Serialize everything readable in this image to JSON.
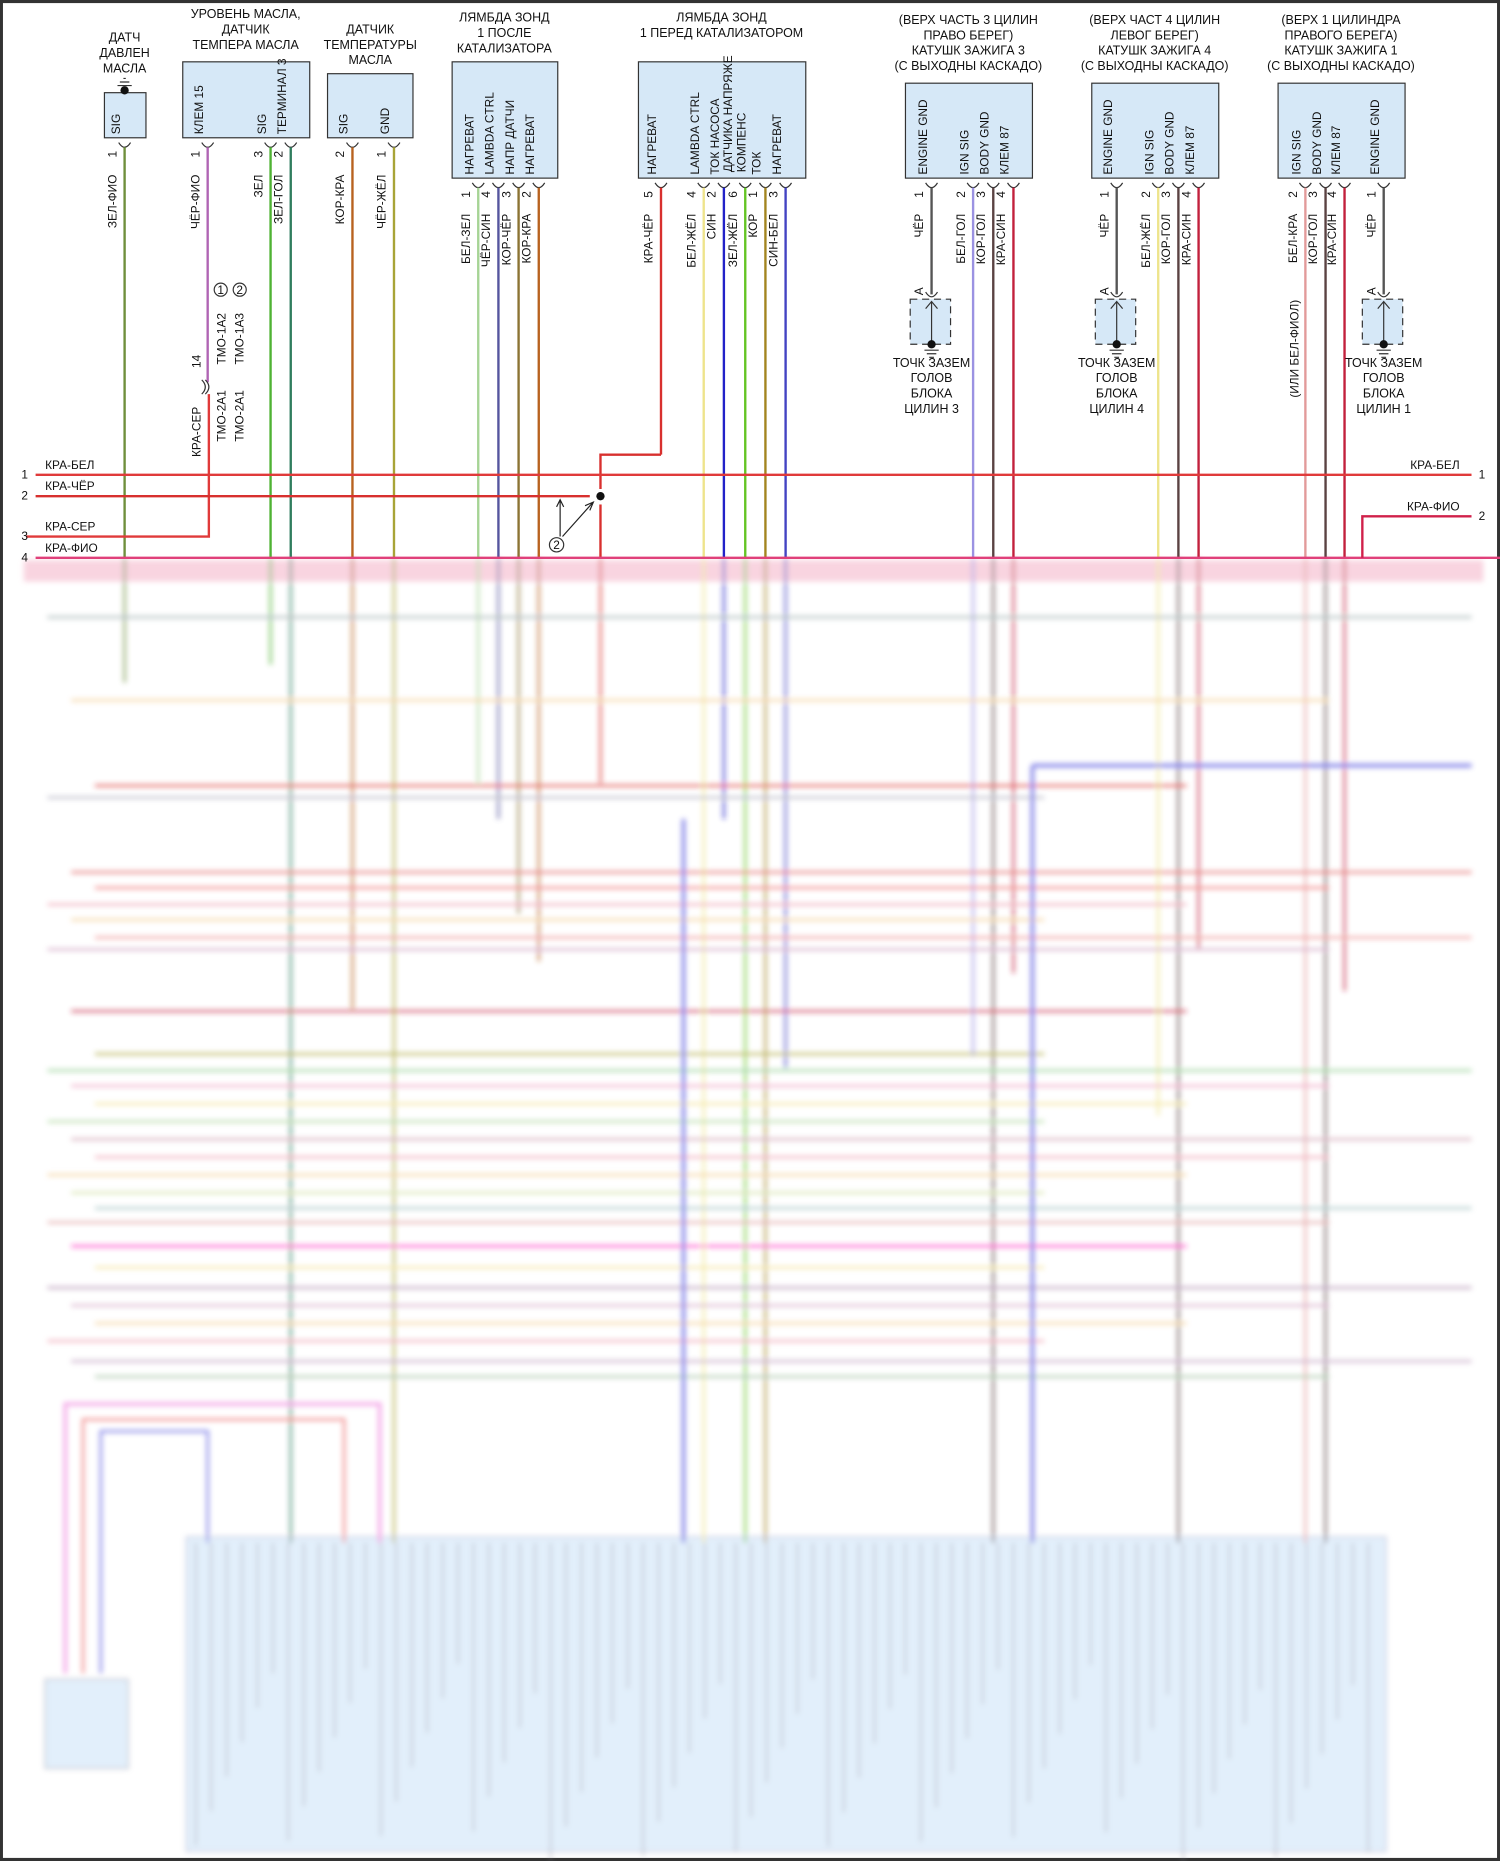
{
  "components": [
    {
      "title": [
        "ДАТЧ",
        "ДАВЛЕН",
        "МАСЛА"
      ],
      "pins": [
        {
          "label": "SIG",
          "num": "1",
          "wire": "ЗЕЛ-ФИО",
          "color": "#6f8f3c"
        }
      ]
    },
    {
      "title": [
        "УРОВЕНЬ МАСЛА,",
        "ДАТЧИК",
        "ТЕМПЕРА МАСЛА"
      ],
      "pins": [
        {
          "label": "КЛЕМ 15",
          "num": "1",
          "wire": "ЧЁР-ФИО",
          "color": "#b064b4"
        },
        {
          "label": "SIG",
          "num": "3",
          "wire": "ЗЕЛ",
          "color": "#4fb233"
        },
        {
          "label": "ТЕРМИНАЛ 3",
          "num": "2",
          "wire": "ЗЕЛ-ГОЛ",
          "color": "#2f7d5e"
        }
      ]
    },
    {
      "title": [
        "ДАТЧИК",
        "ТЕМПЕРАТУРЫ",
        "МАСЛА"
      ],
      "pins": [
        {
          "label": "SIG",
          "num": "2",
          "wire": "КОР-КРА",
          "color": "#b8621f"
        },
        {
          "label": "GND",
          "num": "1",
          "wire": "ЧЁР-ЖЁЛ",
          "color": "#a8a437"
        }
      ]
    },
    {
      "title": [
        "ЛЯМБДА ЗОНД",
        "1 ПОСЛЕ",
        "КАТАЛИЗАТОРА"
      ],
      "pins": [
        {
          "label": "НАГРЕВАТ",
          "num": "1",
          "wire": "БЕЛ-ЗЕЛ",
          "color": "#a6d495"
        },
        {
          "label": "LAMBDA CTRL",
          "num": "4",
          "wire": "ЧЁР-СИН",
          "color": "#55559e"
        },
        {
          "label": "НАПР ДАТЧИ",
          "num": "3",
          "wire": "КОР-ЧЁР",
          "color": "#8b7333"
        },
        {
          "label": "НАГРЕВАТ",
          "num": "2",
          "wire": "КОР-КРА",
          "color": "#b8621f"
        }
      ]
    },
    {
      "title": [
        "ЛЯМБДА ЗОНД",
        "1 ПЕРЕД КАТАЛИЗАТОРОМ"
      ],
      "pins": [
        {
          "label": "НАГРЕВАТ",
          "num": "5",
          "wire": "КРА-ЧЁР",
          "color": "#d8302e"
        },
        {
          "label": "LAMBDA CTRL",
          "num": "4",
          "wire": "БЕЛ-ЖЁЛ",
          "color": "#eee48c"
        },
        {
          "label": "ТОК НАСОСА",
          "num": "2",
          "wire": "СИН",
          "color": "#2222c8"
        },
        {
          "label": "ДАТЧИКА НАПРЯЖЕ КОМПЕНС",
          "num": "6",
          "wire": "ЗЕЛ-ЖЁЛ",
          "color": "#64c423"
        },
        {
          "label": "ТОК",
          "num": "1",
          "wire": "КОР",
          "color": "#a3841f"
        },
        {
          "label": "НАГРЕВАТ",
          "num": "3",
          "wire": "СИН-БЕЛ",
          "color": "#4343c2"
        }
      ]
    },
    {
      "title": [
        "(ВЕРХ ЧАСТЬ 3 ЦИЛИН",
        "ПРАВО БЕРЕГ)",
        "КАТУШК ЗАЖИГА 3",
        "(С ВЫХОДНЫ КАСКАДО)"
      ],
      "pins": [
        {
          "label": "ENGINE GND",
          "num": "1",
          "wire": "ЧЁР",
          "color": "#555555"
        },
        {
          "label": "IGN SIG",
          "num": "2",
          "wire": "БЕЛ-ГОЛ",
          "color": "#9b92e2"
        },
        {
          "label": "BODY GND",
          "num": "3",
          "wire": "КОР-ГОЛ",
          "color": "#5a4242"
        },
        {
          "label": "КЛЕМ 87",
          "num": "4",
          "wire": "КРА-СИН",
          "color": "#c2203c"
        }
      ],
      "ground": {
        "pin": "A",
        "label": [
          "ТОЧК ЗАЗЕМ",
          "ГОЛОВ",
          "БЛОКА",
          "ЦИЛИН 3"
        ]
      }
    },
    {
      "title": [
        "(ВЕРХ ЧАСТ 4 ЦИЛИН",
        "ЛЕВОГ БЕРЕГ)",
        "КАТУШК ЗАЖИГА 4",
        "(С ВЫХОДНЫ КАСКАДО)"
      ],
      "pins": [
        {
          "label": "ENGINE GND",
          "num": "1",
          "wire": "ЧЁР",
          "color": "#555555"
        },
        {
          "label": "IGN SIG",
          "num": "2",
          "wire": "БЕЛ-ЖЁЛ",
          "color": "#eee48c"
        },
        {
          "label": "BODY GND",
          "num": "3",
          "wire": "КОР-ГОЛ",
          "color": "#5a4242"
        },
        {
          "label": "КЛЕМ 87",
          "num": "4",
          "wire": "КРА-СИН",
          "color": "#c2203c"
        }
      ],
      "ground": {
        "pin": "A",
        "label": [
          "ТОЧК ЗАЗЕМ",
          "ГОЛОВ",
          "БЛОКА",
          "ЦИЛИН 4"
        ]
      }
    },
    {
      "title": [
        "(ВЕРХ 1 ЦИЛИНДРА",
        "ПРАВОГО БЕРЕГА)",
        "КАТУШК ЗАЖИГА 1",
        "(С ВЫХОДНЫ КАСКАДО)"
      ],
      "pins": [
        {
          "label": "IGN SIG",
          "num": "2",
          "wire": "БЕЛ-КРА",
          "color": "#e29a9a"
        },
        {
          "label": "BODY GND",
          "num": "3",
          "wire": "КОР-ГОЛ",
          "color": "#5a4242"
        },
        {
          "label": "КЛЕМ 87",
          "num": "4",
          "wire": "КРА-СИН",
          "color": "#c2203c"
        },
        {
          "label": "ENGINE GND",
          "num": "1",
          "wire": "ЧЁР",
          "color": "#555555"
        }
      ],
      "ground": {
        "pin": "A",
        "label": [
          "ТОЧК ЗАЗЕМ",
          "ГОЛОВ",
          "БЛОКА",
          "ЦИЛИН 1"
        ]
      },
      "alt_wire_note": "(ИЛИ БЕЛ-ФИОЛ)"
    }
  ],
  "inline_connector": {
    "pin": "14",
    "lower_wire": "КРА-СЕР",
    "refs": [
      "ТМО-1А2",
      "ТМО-1А3",
      "ТМО-2А1",
      "ТМО-2А1"
    ],
    "markers": [
      "1",
      "2"
    ]
  },
  "bus_left": [
    {
      "num": "1",
      "wire": "КРА-БЕЛ",
      "color": "#e03a3a"
    },
    {
      "num": "2",
      "wire": "КРА-ЧЁР",
      "color": "#d8302e"
    },
    {
      "num": "3",
      "wire": "КРА-СЕР",
      "color": "#e03a3a"
    },
    {
      "num": "4",
      "wire": "КРА-ФИО",
      "color": "#e0407a"
    }
  ],
  "bus_right": [
    {
      "num": "1",
      "wire": "КРА-БЕЛ",
      "color": "#e03a3a"
    },
    {
      "num": "2",
      "wire": "КРА-ФИО",
      "color": "#d0204a"
    }
  ],
  "splice_marker": "2",
  "colors": {
    "box_fill": "#d6e8f7",
    "ecu_fill": "#d9eafa",
    "frame": "#333333"
  }
}
